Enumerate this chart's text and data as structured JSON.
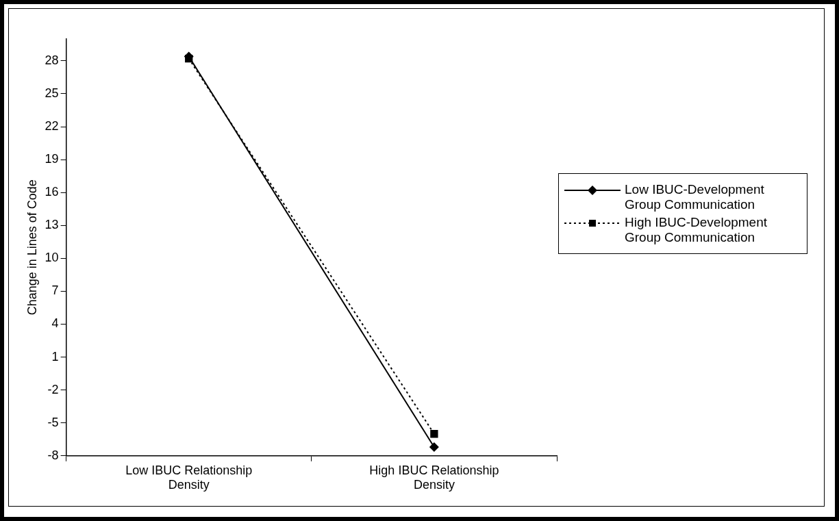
{
  "chart_data": {
    "type": "line",
    "ylabel": "Change in Lines of Code",
    "categories": [
      "Low IBUC Relationship Density",
      "High IBUC Relationship Density"
    ],
    "series": [
      {
        "name": "Low IBUC-Development Group Communication",
        "color": "#000000",
        "values": [
          28.4,
          -7.2
        ],
        "marker": "diamond",
        "line_style": "solid"
      },
      {
        "name": "High IBUC-Development Group Communication",
        "color": "#000000",
        "values": [
          28.2,
          -6.0
        ],
        "marker": "square",
        "line_style": "dotted"
      }
    ],
    "ylim": [
      -8,
      30
    ],
    "yticks": [
      -8,
      -5,
      -2,
      1,
      4,
      7,
      10,
      13,
      16,
      19,
      22,
      25,
      28
    ],
    "grid": false,
    "legend": "right"
  }
}
